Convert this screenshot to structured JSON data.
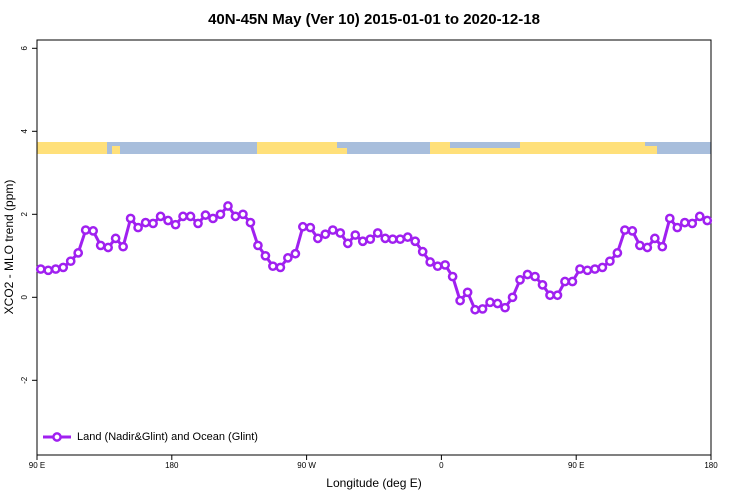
{
  "chart_data": {
    "type": "line",
    "title": "40N-45N May (Ver 10)   2015-01-01 to 2020-12-18",
    "xlabel": "Longitude (deg E)",
    "ylabel": "XCO2 - MLO trend (ppm)",
    "xlim": [
      90,
      540
    ],
    "ylim": [
      -3.8,
      6.2
    ],
    "xticks": [
      {
        "value": 90,
        "label": "90 E"
      },
      {
        "value": 180,
        "label": "180"
      },
      {
        "value": 270,
        "label": "90 W"
      },
      {
        "value": 360,
        "label": "0"
      },
      {
        "value": 450,
        "label": "90 E"
      },
      {
        "value": 540,
        "label": "180"
      }
    ],
    "yticks": [
      -2,
      0,
      2,
      4,
      6
    ],
    "legend": "bottom-left",
    "x": [
      92.5,
      97.5,
      102.5,
      107.5,
      112.5,
      117.5,
      122.5,
      127.5,
      132.5,
      137.5,
      142.5,
      147.5,
      152.5,
      157.5,
      162.5,
      167.5,
      172.5,
      177.5,
      182.5,
      187.5,
      192.5,
      197.5,
      202.5,
      207.5,
      212.5,
      217.5,
      222.5,
      227.5,
      232.5,
      237.5,
      242.5,
      247.5,
      252.5,
      257.5,
      262.5,
      267.5,
      272.5,
      277.5,
      282.5,
      287.5,
      292.5,
      297.5,
      302.5,
      307.5,
      312.5,
      317.5,
      322.5,
      327.5,
      332.5,
      337.5,
      342.5,
      347.5,
      352.5,
      357.5,
      362.5,
      367.5,
      372.5,
      377.5,
      382.5,
      387.5,
      392.5,
      397.5,
      402.5,
      407.5,
      412.5,
      417.5,
      422.5,
      427.5,
      432.5,
      437.5,
      442.5,
      447.5,
      452.5,
      457.5,
      462.5,
      467.5,
      472.5,
      477.5,
      482.5,
      487.5,
      492.5,
      497.5,
      502.5,
      507.5,
      512.5,
      517.5,
      522.5,
      527.5,
      532.5,
      537.5
    ],
    "series": [
      {
        "name": "Land (Nadir&Glint) and Ocean (Glint)",
        "color": "#a020f0",
        "values": [
          0.68,
          0.65,
          0.68,
          0.72,
          0.87,
          1.07,
          1.62,
          1.6,
          1.25,
          1.2,
          1.42,
          1.22,
          1.9,
          1.68,
          1.8,
          1.78,
          1.95,
          1.85,
          1.75,
          1.95,
          1.95,
          1.78,
          1.98,
          1.9,
          2.0,
          2.2,
          1.95,
          2.0,
          1.8,
          1.25,
          1.0,
          0.75,
          0.72,
          0.95,
          1.05,
          1.7,
          1.68,
          1.42,
          1.52,
          1.62,
          1.55,
          1.3,
          1.5,
          1.35,
          1.4,
          1.55,
          1.42,
          1.4,
          1.4,
          1.45,
          1.35,
          1.1,
          0.85,
          0.75,
          0.78,
          0.5,
          -0.08,
          0.12,
          -0.3,
          -0.28,
          -0.12,
          -0.15,
          -0.25,
          0.0,
          0.42,
          0.55,
          0.5,
          0.3,
          0.05,
          0.05,
          0.38,
          0.38,
          0.68,
          0.65,
          0.68,
          0.72,
          0.87,
          1.07,
          1.62,
          1.6,
          1.25,
          1.2,
          1.42,
          1.22,
          1.9,
          1.68,
          1.8,
          1.78,
          1.95,
          1.85
        ]
      }
    ]
  }
}
